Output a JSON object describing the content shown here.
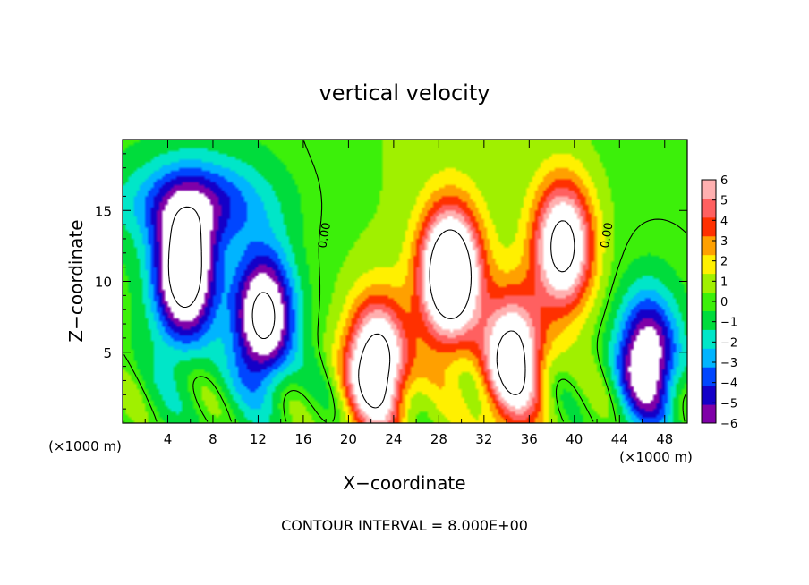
{
  "chart_data": {
    "type": "heatmap",
    "title": "vertical velocity",
    "xlabel": "X−coordinate",
    "ylabel": "Z−coordinate",
    "x_unit_label": "(×1000 m)",
    "x_unit_label_right": "(×1000 m)",
    "footer": "CONTOUR INTERVAL = 8.000E+00",
    "xlim": [
      0,
      50
    ],
    "ylim": [
      0,
      20
    ],
    "xticks": [
      4,
      8,
      12,
      16,
      20,
      24,
      28,
      32,
      36,
      40,
      44,
      48
    ],
    "yticks": [
      5,
      10,
      15
    ],
    "colorbar": {
      "range": [
        -6,
        6
      ],
      "ticks": [
        6,
        5,
        4,
        3,
        2,
        1,
        0,
        -1,
        -2,
        -3,
        -4,
        -5,
        -6
      ],
      "tick_labels": [
        "6",
        "5",
        "4",
        "3",
        "2",
        "1",
        "0",
        "−1",
        "−2",
        "−3",
        "−4",
        "−5",
        "−6"
      ],
      "colors": [
        "#7f00a8",
        "#1400c8",
        "#0046ff",
        "#00b4ff",
        "#00e6c8",
        "#00dc3c",
        "#3cf00a",
        "#a0f000",
        "#fff000",
        "#ffa000",
        "#ff3000",
        "#ff6060",
        "#ffb0b0"
      ]
    },
    "contour_labels": [
      {
        "text": "0.00",
        "x": 18.2,
        "z": 13.2
      },
      {
        "text": "0.00",
        "x": 43.2,
        "z": 13.2
      }
    ],
    "features": [
      {
        "name": "downdraft",
        "x": 5.5,
        "z": 10.5,
        "w": -10
      },
      {
        "name": "downdraft",
        "x": 12.5,
        "z": 7.5,
        "w": -9
      },
      {
        "name": "downdraft-upper-west",
        "x": 6.5,
        "z": 15.5,
        "w": -4.5
      },
      {
        "name": "updraft-core",
        "x": 29.0,
        "z": 10.5,
        "w": 12
      },
      {
        "name": "updraft",
        "x": 22.5,
        "z": 4.0,
        "w": 10
      },
      {
        "name": "updraft",
        "x": 34.5,
        "z": 4.5,
        "w": 9
      },
      {
        "name": "updraft",
        "x": 39.0,
        "z": 12.5,
        "w": 9
      },
      {
        "name": "downdraft-east",
        "x": 46.5,
        "z": 4.5,
        "w": -8
      }
    ]
  }
}
